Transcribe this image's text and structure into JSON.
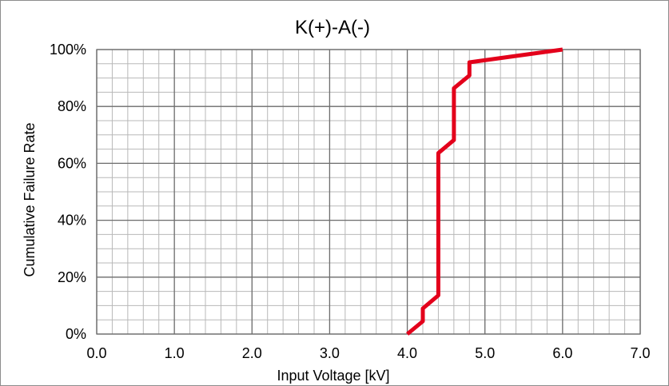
{
  "chart_data": {
    "type": "line",
    "title": "K(+)-A(-)",
    "xlabel": "Input Voltage [kV]",
    "ylabel": "Cumulative Failure Rate",
    "xlim": [
      0,
      7
    ],
    "ylim": [
      0,
      100
    ],
    "x_ticks": [
      "0.0",
      "1.0",
      "2.0",
      "3.0",
      "4.0",
      "5.0",
      "6.0",
      "7.0"
    ],
    "y_ticks": [
      "0%",
      "20%",
      "40%",
      "60%",
      "80%",
      "100%"
    ],
    "x_minor_step": 0.2,
    "y_minor_step": 5,
    "grid": true,
    "series": [
      {
        "color": "#e3001b",
        "x": [
          4.0,
          4.2,
          4.2,
          4.4,
          4.4,
          4.6,
          4.6,
          4.8,
          4.8,
          6.0
        ],
        "y": [
          0,
          4.5,
          9,
          13.6,
          63.6,
          68.2,
          86.4,
          90.9,
          95.5,
          100
        ]
      }
    ]
  }
}
